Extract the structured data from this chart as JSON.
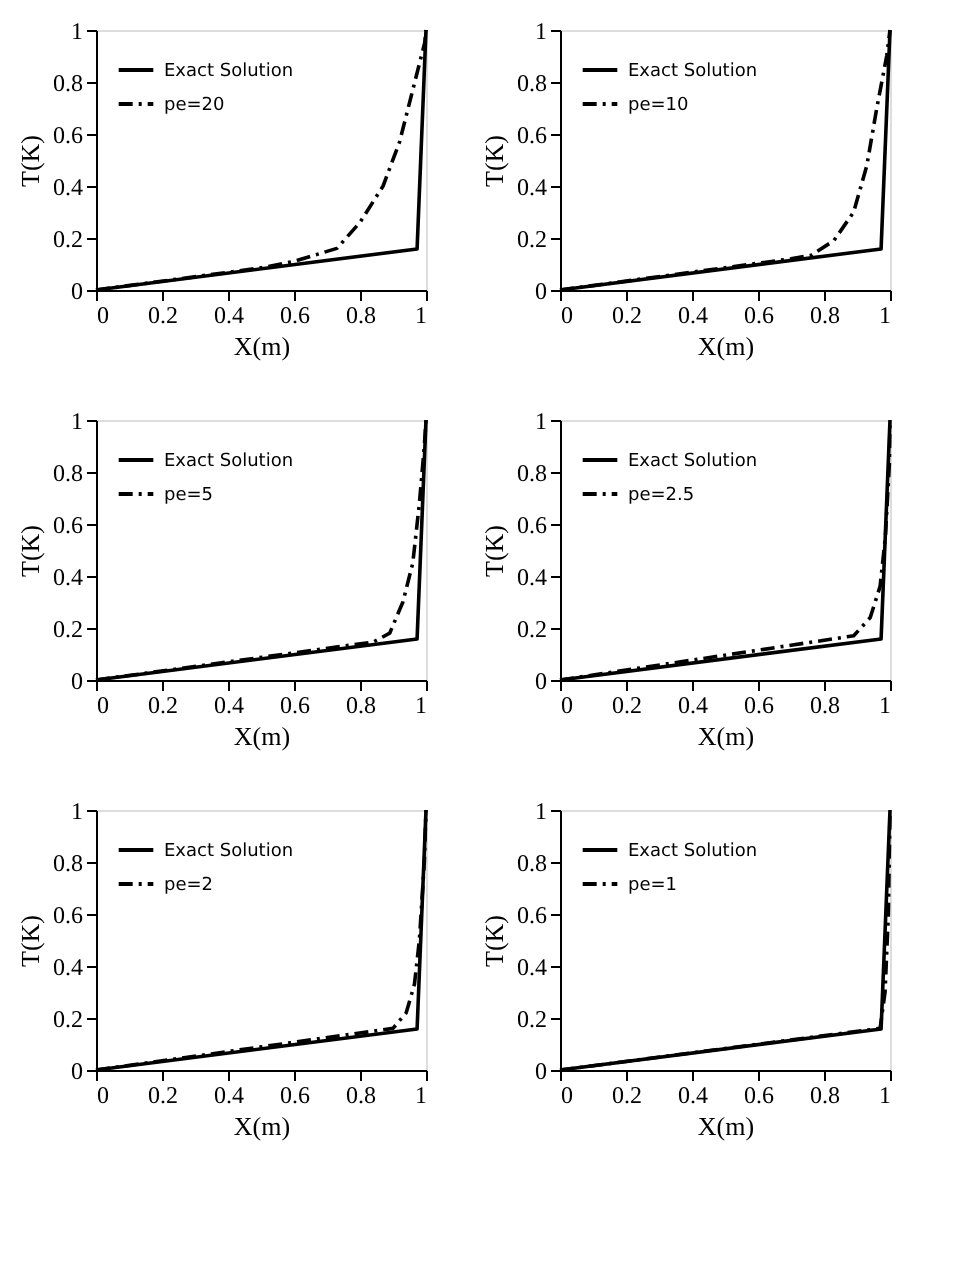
{
  "chart_data": [
    {
      "type": "line",
      "xlabel": "X(m)",
      "ylabel": "T(K)",
      "xlim": [
        0,
        1
      ],
      "ylim": [
        0,
        1
      ],
      "xticks": [
        0,
        0.2,
        0.4,
        0.6,
        0.8,
        1
      ],
      "yticks": [
        0,
        0.2,
        0.4,
        0.6,
        0.8,
        1
      ],
      "grid": false,
      "legend": "top left",
      "marker": "none",
      "series": [
        {
          "name": "Exact Solution",
          "color": "#000000",
          "line_style": "solid",
          "x": [
            0,
            0.973,
            1
          ],
          "values": [
            0,
            0.158,
            1
          ]
        },
        {
          "name": "pe=20",
          "color": "#000000",
          "line_style": "dashdot",
          "x": [
            0,
            0.5,
            0.6,
            0.73,
            0.8,
            0.87,
            0.92,
            0.97,
            0.996,
            1
          ],
          "values": [
            0,
            0.085,
            0.11,
            0.16,
            0.26,
            0.4,
            0.57,
            0.82,
            0.95,
            1
          ]
        }
      ]
    },
    {
      "type": "line",
      "xlabel": "X(m)",
      "ylabel": "T(K)",
      "xlim": [
        0,
        1
      ],
      "ylim": [
        0,
        1
      ],
      "xticks": [
        0,
        0.2,
        0.4,
        0.6,
        0.8,
        1
      ],
      "yticks": [
        0,
        0.2,
        0.4,
        0.6,
        0.8,
        1
      ],
      "grid": false,
      "legend": "top left",
      "marker": "none",
      "series": [
        {
          "name": "Exact Solution",
          "color": "#000000",
          "line_style": "solid",
          "x": [
            0,
            0.973,
            1
          ],
          "values": [
            0,
            0.158,
            1
          ]
        },
        {
          "name": "pe=10",
          "color": "#000000",
          "line_style": "dashdot",
          "x": [
            0,
            0.7,
            0.76,
            0.83,
            0.89,
            0.93,
            0.96,
            0.99,
            1
          ],
          "values": [
            0,
            0.12,
            0.133,
            0.19,
            0.3,
            0.48,
            0.7,
            0.9,
            1
          ]
        }
      ]
    },
    {
      "type": "line",
      "xlabel": "X(m)",
      "ylabel": "T(K)",
      "xlim": [
        0,
        1
      ],
      "ylim": [
        0,
        1
      ],
      "xticks": [
        0,
        0.2,
        0.4,
        0.6,
        0.8,
        1
      ],
      "yticks": [
        0,
        0.2,
        0.4,
        0.6,
        0.8,
        1
      ],
      "grid": false,
      "legend": "top left",
      "marker": "none",
      "series": [
        {
          "name": "Exact Solution",
          "color": "#000000",
          "line_style": "solid",
          "x": [
            0,
            0.973,
            1
          ],
          "values": [
            0,
            0.158,
            1
          ]
        },
        {
          "name": "pe=5",
          "color": "#000000",
          "line_style": "dashdot",
          "x": [
            0,
            0.84,
            0.89,
            0.93,
            0.96,
            0.98,
            0.995,
            1
          ],
          "values": [
            0,
            0.146,
            0.18,
            0.3,
            0.45,
            0.68,
            0.9,
            1
          ]
        }
      ]
    },
    {
      "type": "line",
      "xlabel": "X(m)",
      "ylabel": "T(K)",
      "xlim": [
        0,
        1
      ],
      "ylim": [
        0,
        1
      ],
      "xticks": [
        0,
        0.2,
        0.4,
        0.6,
        0.8,
        1
      ],
      "yticks": [
        0,
        0.2,
        0.4,
        0.6,
        0.8,
        1
      ],
      "grid": false,
      "legend": "top left",
      "marker": "none",
      "series": [
        {
          "name": "Exact Solution",
          "color": "#000000",
          "line_style": "solid",
          "x": [
            0,
            0.973,
            1
          ],
          "values": [
            0,
            0.158,
            1
          ]
        },
        {
          "name": "pe=2.5",
          "color": "#000000",
          "line_style": "dashdot",
          "x": [
            0,
            0.89,
            0.94,
            0.97,
            0.986,
            0.998,
            1
          ],
          "values": [
            0,
            0.17,
            0.24,
            0.36,
            0.55,
            0.83,
            1
          ]
        }
      ]
    },
    {
      "type": "line",
      "xlabel": "X(m)",
      "ylabel": "T(K)",
      "xlim": [
        0,
        1
      ],
      "ylim": [
        0,
        1
      ],
      "xticks": [
        0,
        0.2,
        0.4,
        0.6,
        0.8,
        1
      ],
      "yticks": [
        0,
        0.2,
        0.4,
        0.6,
        0.8,
        1
      ],
      "grid": false,
      "legend": "top left",
      "marker": "none",
      "series": [
        {
          "name": "Exact Solution",
          "color": "#000000",
          "line_style": "solid",
          "x": [
            0,
            0.973,
            1
          ],
          "values": [
            0,
            0.158,
            1
          ]
        },
        {
          "name": "pe=2",
          "color": "#000000",
          "line_style": "dashdot",
          "x": [
            0,
            0.9,
            0.94,
            0.965,
            0.98,
            0.995,
            1
          ],
          "values": [
            0,
            0.16,
            0.22,
            0.33,
            0.5,
            0.8,
            1
          ]
        }
      ]
    },
    {
      "type": "line",
      "xlabel": "X(m)",
      "ylabel": "T(K)",
      "xlim": [
        0,
        1
      ],
      "ylim": [
        0,
        1
      ],
      "xticks": [
        0,
        0.2,
        0.4,
        0.6,
        0.8,
        1
      ],
      "yticks": [
        0,
        0.2,
        0.4,
        0.6,
        0.8,
        1
      ],
      "grid": false,
      "legend": "top left",
      "marker": "none",
      "series": [
        {
          "name": "Exact Solution",
          "color": "#000000",
          "line_style": "solid",
          "x": [
            0,
            0.973,
            1
          ],
          "values": [
            0,
            0.158,
            1
          ]
        },
        {
          "name": "pe=1",
          "color": "#000000",
          "line_style": "dashdot",
          "x": [
            0,
            0.97,
            0.985,
            0.995,
            1
          ],
          "values": [
            0,
            0.16,
            0.3,
            0.6,
            1
          ]
        }
      ]
    }
  ]
}
